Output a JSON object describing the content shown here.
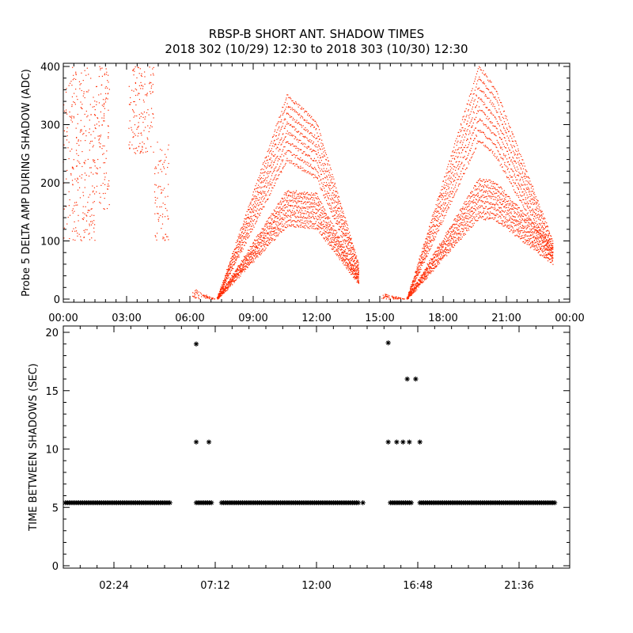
{
  "title": "RBSP-B SHORT ANT. SHADOW TIMES",
  "subtitle": "2018 302 (10/29) 12:30 to 2018 303 (10/30) 12:30",
  "chart_data": [
    {
      "type": "scatter",
      "name": "top",
      "ylabel": "Probe 5 DELTA AMP DURING SHADOW (ADC)",
      "xlabel": "",
      "xlim": [
        0,
        24
      ],
      "ylim": [
        0,
        400
      ],
      "x_ticks": [
        0,
        3,
        6,
        9,
        12,
        15,
        18,
        21,
        24
      ],
      "x_tick_labels": [
        "00:00",
        "03:00",
        "06:00",
        "09:00",
        "12:00",
        "15:00",
        "18:00",
        "21:00",
        "00:00"
      ],
      "y_ticks": [
        0,
        100,
        200,
        300,
        400
      ],
      "y_tick_labels": [
        "0",
        "100",
        "200",
        "300",
        "400"
      ],
      "marker_color": "#ff2a00",
      "grid": false,
      "clusters": [
        {
          "x": [
            0.0,
            1.5
          ],
          "y": [
            100,
            400
          ]
        },
        {
          "x": [
            1.5,
            2.2
          ],
          "y": [
            150,
            400
          ]
        },
        {
          "x": [
            3.1,
            4.3
          ],
          "y": [
            250,
            400
          ]
        },
        {
          "x": [
            4.3,
            5.0
          ],
          "y": [
            100,
            270
          ]
        },
        {
          "x": [
            6.1,
            7.2
          ],
          "y": [
            0,
            20
          ]
        },
        {
          "x": [
            7.3,
            14.0
          ],
          "y": [
            0,
            350
          ]
        },
        {
          "x": [
            15.1,
            16.2
          ],
          "y": [
            0,
            10
          ]
        },
        {
          "x": [
            16.3,
            23.3
          ],
          "y": [
            0,
            400
          ]
        }
      ],
      "upper_arc_peaks": [
        {
          "x": [
            7.3,
            10.6,
            12.0,
            14.0
          ],
          "y": [
            0,
            350,
            305,
            60
          ]
        },
        {
          "x": [
            16.3,
            19.7,
            20.5,
            23.2
          ],
          "y": [
            0,
            400,
            360,
            100
          ]
        }
      ],
      "lower_arc_peaks": [
        {
          "x": [
            7.3,
            10.6,
            12.0,
            14.0
          ],
          "y": [
            0,
            185,
            180,
            40
          ]
        },
        {
          "x": [
            16.3,
            19.7,
            20.5,
            23.2
          ],
          "y": [
            0,
            205,
            200,
            90
          ]
        }
      ]
    },
    {
      "type": "scatter",
      "name": "bottom",
      "ylabel": "TIME BETWEEN SHADOWS (SEC)",
      "xlabel": "",
      "xlim": [
        0,
        24
      ],
      "ylim": [
        0,
        20
      ],
      "x_ticks": [
        2.4,
        7.2,
        12.0,
        16.8,
        21.6
      ],
      "x_tick_labels": [
        "02:24",
        "07:12",
        "12:00",
        "16:48",
        "21:36"
      ],
      "y_ticks": [
        0,
        5,
        10,
        15,
        20
      ],
      "y_tick_labels": [
        "0",
        "5",
        "10",
        "15",
        "20"
      ],
      "marker": "asterisk",
      "marker_color": "#000000",
      "grid": false,
      "baseline_value": 5.4,
      "baseline_segments": [
        [
          0.1,
          5.1
        ],
        [
          6.3,
          7.1
        ],
        [
          7.5,
          14.0
        ],
        [
          15.5,
          16.5
        ],
        [
          16.9,
          23.3
        ]
      ],
      "points": [
        {
          "x": 14.2,
          "y": 5.4
        },
        {
          "x": 6.3,
          "y": 19.0
        },
        {
          "x": 6.3,
          "y": 10.6
        },
        {
          "x": 6.9,
          "y": 10.6
        },
        {
          "x": 15.4,
          "y": 19.1
        },
        {
          "x": 15.4,
          "y": 10.6
        },
        {
          "x": 15.8,
          "y": 10.6
        },
        {
          "x": 16.1,
          "y": 10.6
        },
        {
          "x": 16.4,
          "y": 10.6
        },
        {
          "x": 16.9,
          "y": 10.6
        },
        {
          "x": 16.3,
          "y": 16.0
        },
        {
          "x": 16.7,
          "y": 16.0
        }
      ]
    }
  ]
}
